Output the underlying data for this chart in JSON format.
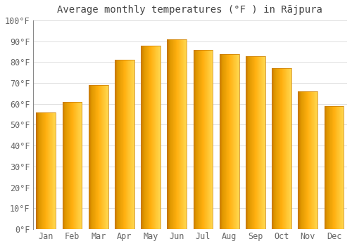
{
  "title": "Average monthly temperatures (°F ) in Rājpura",
  "months": [
    "Jan",
    "Feb",
    "Mar",
    "Apr",
    "May",
    "Jun",
    "Jul",
    "Aug",
    "Sep",
    "Oct",
    "Nov",
    "Dec"
  ],
  "values": [
    56,
    61,
    69,
    81,
    88,
    91,
    86,
    84,
    83,
    77,
    66,
    59
  ],
  "bar_color_left": "#E07800",
  "bar_color_mid": "#FFA500",
  "bar_color_right": "#FFD040",
  "bar_edge_color": "#C87000",
  "ylim": [
    0,
    100
  ],
  "yticks": [
    0,
    10,
    20,
    30,
    40,
    50,
    60,
    70,
    80,
    90,
    100
  ],
  "ytick_labels": [
    "0°F",
    "10°F",
    "20°F",
    "30°F",
    "40°F",
    "50°F",
    "60°F",
    "70°F",
    "80°F",
    "90°F",
    "100°F"
  ],
  "bg_color": "#FFFFFF",
  "grid_color": "#E0E0E0",
  "title_fontsize": 10,
  "tick_fontsize": 8.5,
  "font_family": "monospace",
  "bar_width": 0.75,
  "n_gradient_steps": 50
}
